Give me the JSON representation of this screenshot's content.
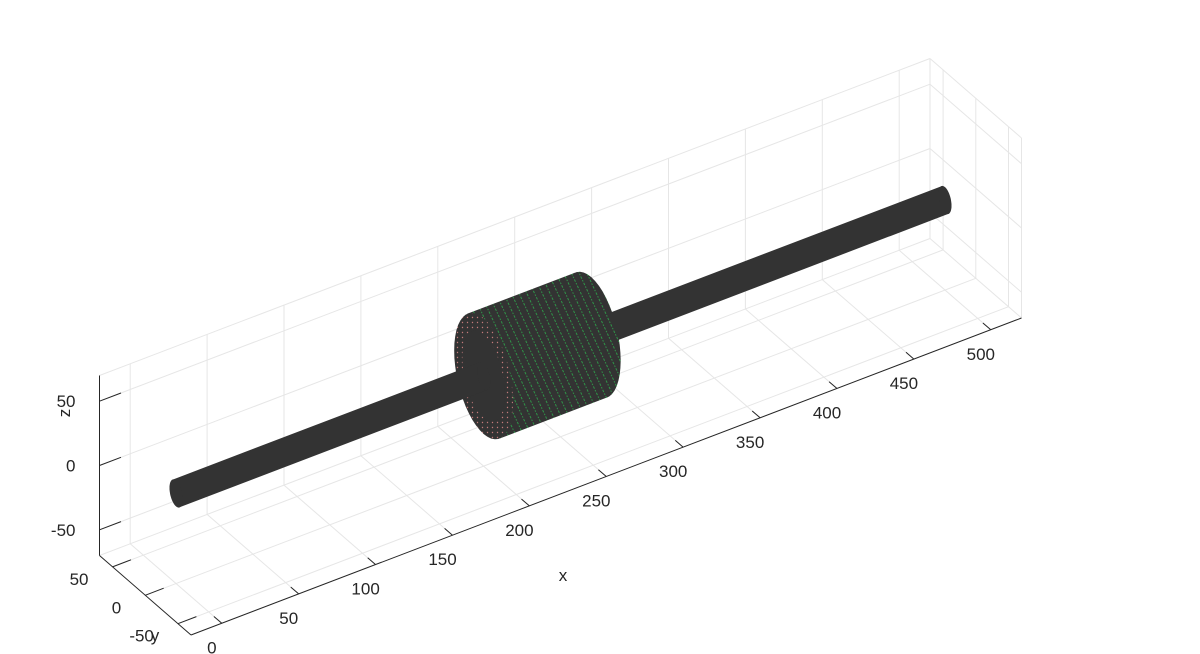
{
  "chart_data": {
    "type": "3d-surface",
    "xlabel": "x",
    "ylabel": "y",
    "zlabel": "z",
    "xlim": [
      -20,
      520
    ],
    "ylim": [
      -70,
      70
    ],
    "zlim": [
      -70,
      70
    ],
    "xticks": [
      "0",
      "50",
      "100",
      "150",
      "200",
      "250",
      "300",
      "350",
      "400",
      "450",
      "500"
    ],
    "xtick_values": [
      0,
      50,
      100,
      150,
      200,
      250,
      300,
      350,
      400,
      450,
      500
    ],
    "yticks": [
      "-50",
      "0",
      "50"
    ],
    "ytick_values": [
      -50,
      0,
      50
    ],
    "zticks": [
      "-50",
      "0",
      "50"
    ],
    "ztick_values": [
      -50,
      0,
      50
    ],
    "grid": true,
    "box": true,
    "objects": [
      {
        "name": "shaft",
        "shape": "cylinder",
        "axis": "x",
        "x_start": 0,
        "x_end": 500,
        "radius": 10,
        "color": "#333333"
      },
      {
        "name": "disk",
        "shape": "cylinder",
        "axis": "x",
        "x_start": 200,
        "x_end": 270,
        "radius": 45,
        "color": "#333333",
        "mesh_color_side": "#2e9e4a",
        "mesh_color_face": "#c27a7a"
      }
    ]
  }
}
